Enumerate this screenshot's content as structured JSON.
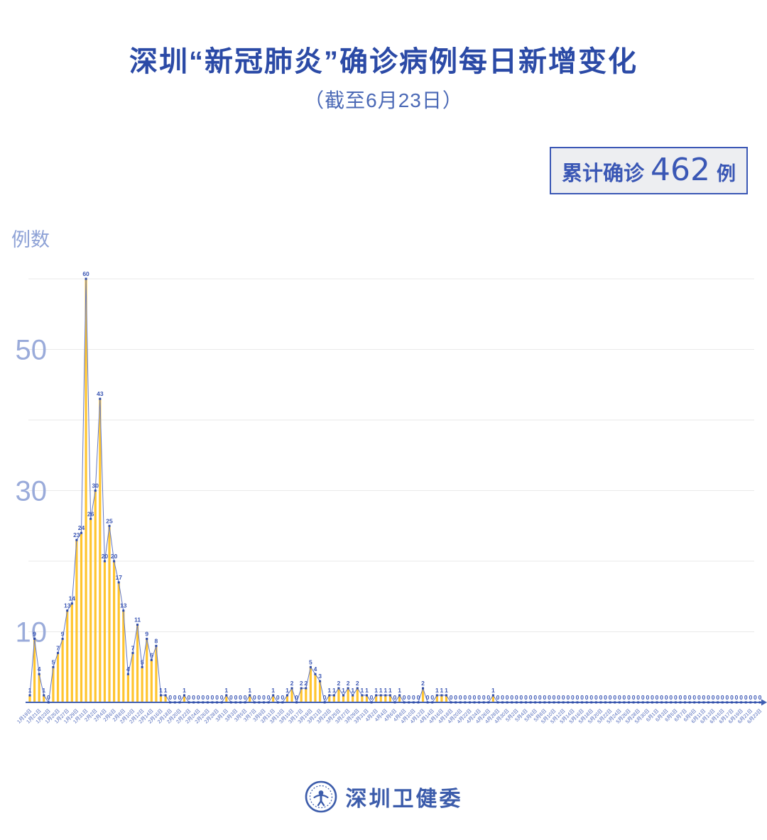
{
  "title": "深圳“新冠肺炎”确诊病例每日新增变化",
  "subtitle": "（截至6月23日）",
  "badge": {
    "prefix": "累计确诊",
    "value": "462",
    "suffix": "例"
  },
  "y_axis_unit": "例数",
  "footer": {
    "logo": "shenzhen-health-commission-emblem",
    "text": "深圳卫健委"
  },
  "chart_data": {
    "type": "line",
    "title": "深圳“新冠肺炎”确诊病例每日新增变化",
    "subtitle": "（截至6月23日）",
    "ylabel": "例数",
    "ylim": [
      0,
      62
    ],
    "ytick_labels": [
      10,
      30,
      50
    ],
    "gridlines": [
      10,
      20,
      30,
      40,
      50,
      60
    ],
    "grid": "horizontal",
    "legend": "none",
    "x_tick_every": 2,
    "point_labels": "all",
    "colors": {
      "bar": "#FFC52F",
      "line": "#6277C4",
      "marker": "#2E4BA8",
      "label": "#3A56B4",
      "axis": "#3F5FB3",
      "tick_text": "#5069BA",
      "ytick_text": "#9AABDA",
      "gridline": "#E9E9E9"
    },
    "x": [
      "1月19日",
      "1月20日",
      "1月21日",
      "1月22日",
      "1月23日",
      "1月24日",
      "1月25日",
      "1月26日",
      "1月27日",
      "1月28日",
      "1月29日",
      "1月30日",
      "1月31日",
      "2月1日",
      "2月2日",
      "2月3日",
      "2月4日",
      "2月5日",
      "2月6日",
      "2月7日",
      "2月8日",
      "2月9日",
      "2月10日",
      "2月11日",
      "2月12日",
      "2月13日",
      "2月14日",
      "2月15日",
      "2月16日",
      "2月17日",
      "2月18日",
      "2月19日",
      "2月20日",
      "2月21日",
      "2月22日",
      "2月23日",
      "2月24日",
      "2月25日",
      "2月26日",
      "2月27日",
      "2月28日",
      "2月29日",
      "3月1日",
      "3月2日",
      "3月3日",
      "3月4日",
      "3月5日",
      "3月6日",
      "3月7日",
      "3月8日",
      "3月9日",
      "3月10日",
      "3月11日",
      "3月12日",
      "3月13日",
      "3月14日",
      "3月15日",
      "3月16日",
      "3月17日",
      "3月18日",
      "3月19日",
      "3月20日",
      "3月21日",
      "3月22日",
      "3月23日",
      "3月24日",
      "3月25日",
      "3月26日",
      "3月27日",
      "3月28日",
      "3月29日",
      "3月30日",
      "3月31日",
      "4月1日",
      "4月2日",
      "4月3日",
      "4月4日",
      "4月5日",
      "4月6日",
      "4月7日",
      "4月8日",
      "4月9日",
      "4月10日",
      "4月11日",
      "4月12日",
      "4月13日",
      "4月14日",
      "4月15日",
      "4月16日",
      "4月17日",
      "4月18日",
      "4月19日",
      "4月20日",
      "4月21日",
      "4月22日",
      "4月23日",
      "4月24日",
      "4月25日",
      "4月26日",
      "4月27日",
      "4月28日",
      "4月29日",
      "4月30日",
      "5月1日",
      "5月2日",
      "5月3日",
      "5月4日",
      "5月5日",
      "5月6日",
      "5月7日",
      "5月8日",
      "5月9日",
      "5月10日",
      "5月11日",
      "5月12日",
      "5月13日",
      "5月14日",
      "5月15日",
      "5月16日",
      "5月17日",
      "5月18日",
      "5月19日",
      "5月20日",
      "5月21日",
      "5月22日",
      "5月23日",
      "5月24日",
      "5月25日",
      "5月26日",
      "5月27日",
      "5月28日",
      "5月29日",
      "5月30日",
      "5月31日",
      "6月1日",
      "6月2日",
      "6月3日",
      "6月4日",
      "6月5日",
      "6月6日",
      "6月7日",
      "6月8日",
      "6月9日",
      "6月10日",
      "6月11日",
      "6月12日",
      "6月13日",
      "6月14日",
      "6月15日",
      "6月16日",
      "6月17日",
      "6月18日",
      "6月19日",
      "6月20日",
      "6月21日",
      "6月22日",
      "6月23日"
    ],
    "values": [
      1,
      9,
      4,
      1,
      0,
      5,
      7,
      9,
      13,
      14,
      23,
      24,
      60,
      26,
      30,
      43,
      20,
      25,
      20,
      17,
      13,
      4,
      7,
      11,
      5,
      9,
      6,
      8,
      1,
      1,
      0,
      0,
      0,
      1,
      0,
      0,
      0,
      0,
      0,
      0,
      0,
      0,
      1,
      0,
      0,
      0,
      0,
      1,
      0,
      0,
      0,
      0,
      1,
      0,
      0,
      1,
      2,
      0,
      2,
      2,
      5,
      4,
      3,
      0,
      1,
      1,
      2,
      1,
      2,
      1,
      2,
      1,
      1,
      0,
      1,
      1,
      1,
      1,
      0,
      1,
      0,
      0,
      0,
      0,
      2,
      0,
      0,
      1,
      1,
      1,
      0,
      0,
      0,
      0,
      0,
      0,
      0,
      0,
      0,
      1,
      0,
      0,
      0,
      0,
      0,
      0,
      0,
      0,
      0,
      0,
      0,
      0,
      0,
      0,
      0,
      0,
      0,
      0,
      0,
      0,
      0,
      0,
      0,
      0,
      0,
      0,
      0,
      0,
      0,
      0,
      0,
      0,
      0,
      0,
      0,
      0,
      0,
      0,
      0,
      0,
      0,
      0,
      0,
      0,
      0,
      0,
      0,
      0,
      0,
      0,
      0,
      0,
      0,
      0,
      0,
      0,
      0
    ],
    "total": 462
  }
}
